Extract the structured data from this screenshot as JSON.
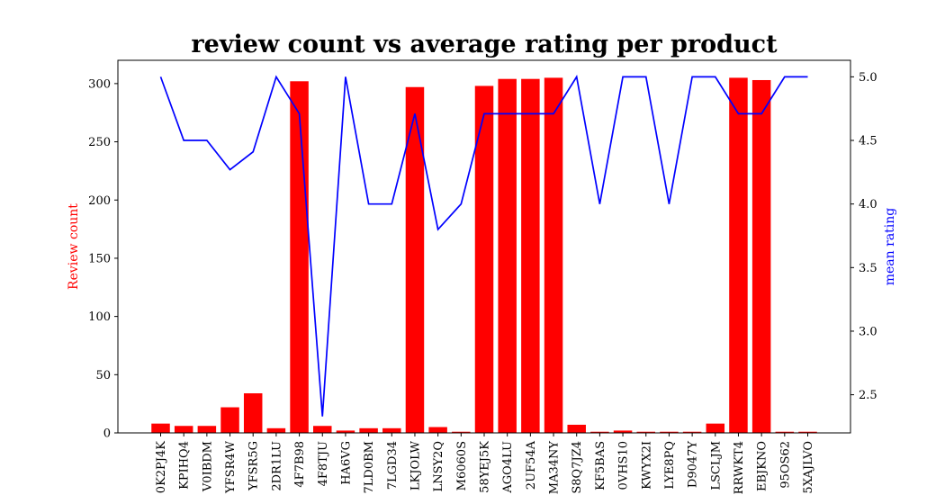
{
  "chart_data": {
    "type": "bar",
    "title": "review count vs average rating per product",
    "ylabel_left": "Review count",
    "ylabel_right": "mean rating",
    "ylim_left": [
      0,
      320
    ],
    "ylim_right": [
      2.2,
      5.13
    ],
    "yticks_left": [
      0,
      50,
      100,
      150,
      200,
      250,
      300
    ],
    "yticks_right": [
      2.5,
      3.0,
      3.5,
      4.0,
      4.5,
      5.0
    ],
    "categories": [
      "0K2PJ4K",
      "KPIHQ4",
      "V0IBDM",
      "YFSR4W",
      "YFSR5G",
      "2DR1LU",
      "4F7B98",
      "4F8TJU",
      "HA6VG",
      "7LD0BM",
      "7LGD34",
      "LKJOLW",
      "LNSY2Q",
      "M6060S",
      "58YEJ5K",
      "AGO4LU",
      "2UF54A",
      "MA34NY",
      "S8Q7JZ4",
      "KF5BAS",
      "0VHS10",
      "KWYX2I",
      "LYE8PQ",
      "D9047Y",
      "LSCLJM",
      "RRWKT4",
      "EBJKNO",
      "95OS62",
      "5XAJLVO"
    ],
    "series": [
      {
        "kind": "bar",
        "color": "#ff0000",
        "values": [
          8,
          6,
          6,
          22,
          34,
          4,
          302,
          6,
          2,
          4,
          4,
          297,
          5,
          1,
          298,
          304,
          304,
          305,
          7,
          1,
          2,
          1,
          1,
          1,
          8,
          305,
          303,
          1,
          1
        ]
      },
      {
        "kind": "line",
        "color": "#0000ff",
        "values": [
          5.0,
          4.5,
          4.5,
          4.27,
          4.41,
          5.0,
          4.71,
          2.33,
          5.0,
          4.0,
          4.0,
          4.71,
          3.8,
          4.0,
          4.71,
          4.71,
          4.71,
          4.71,
          5.0,
          4.0,
          5.0,
          5.0,
          4.0,
          5.0,
          5.0,
          4.71,
          4.71,
          5.0,
          5.0
        ]
      }
    ]
  }
}
